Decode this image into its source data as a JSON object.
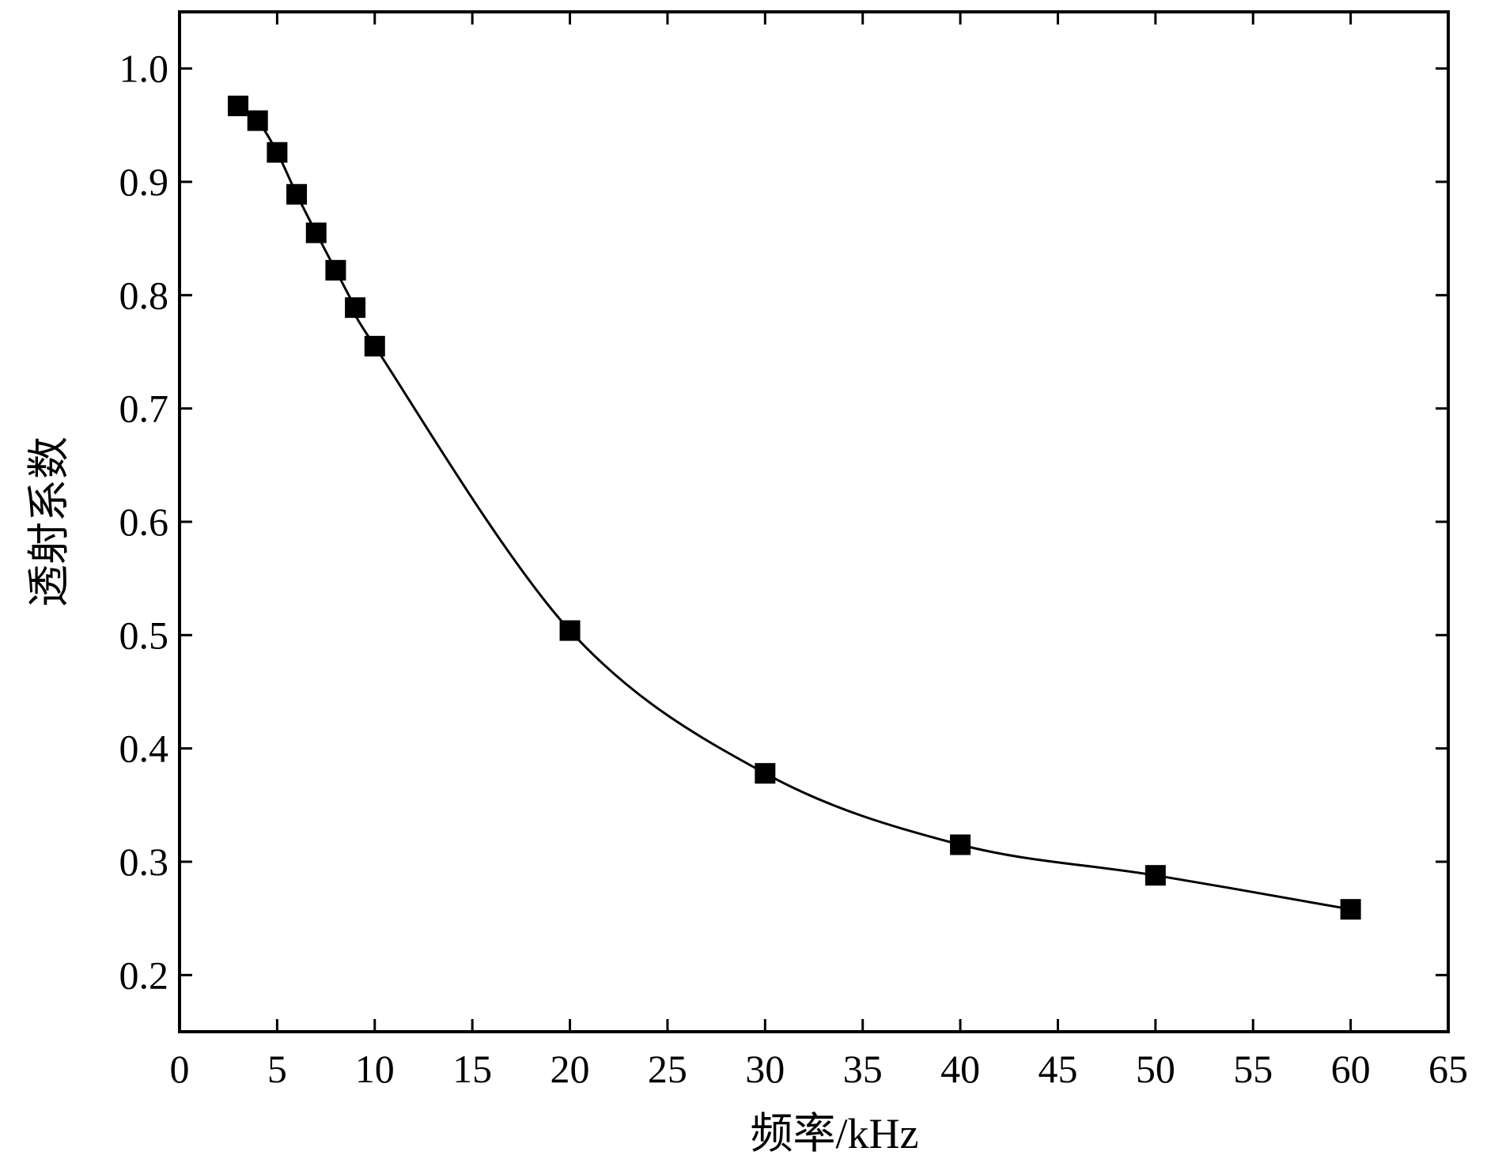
{
  "chart_data": {
    "type": "line",
    "xlabel": "频率/kHz",
    "ylabel": "透射系数",
    "xlim": [
      0,
      65
    ],
    "ylim": [
      0.15,
      1.05
    ],
    "x_ticks": [
      "0",
      "5",
      "10",
      "15",
      "20",
      "25",
      "30",
      "35",
      "40",
      "45",
      "50",
      "55",
      "60",
      "65"
    ],
    "y_ticks": [
      "0.2",
      "0.3",
      "0.4",
      "0.5",
      "0.6",
      "0.7",
      "0.8",
      "0.9",
      "1.0"
    ],
    "grid": false,
    "legend": "none",
    "marker": "filled-square",
    "series": [
      {
        "x": [
          3,
          4,
          5,
          6,
          7,
          8,
          9,
          10,
          20,
          30,
          40,
          50,
          60
        ],
        "y": [
          0.967,
          0.954,
          0.926,
          0.889,
          0.855,
          0.822,
          0.789,
          0.755,
          0.504,
          0.378,
          0.315,
          0.288,
          0.258
        ],
        "color": "#000000"
      }
    ]
  }
}
